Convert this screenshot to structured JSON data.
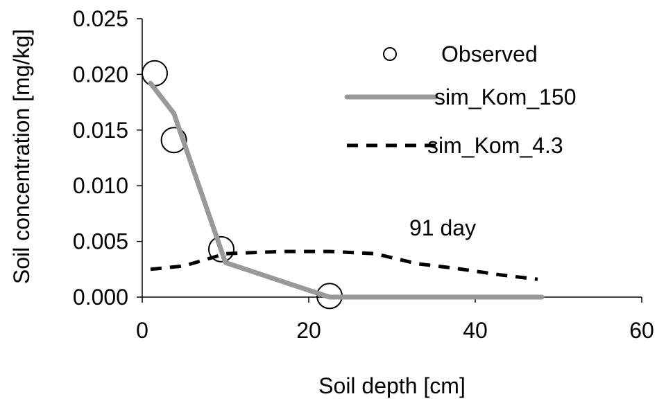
{
  "chart_data": {
    "type": "line",
    "title": "",
    "xlabel": "Soil depth [cm]",
    "ylabel": "Soil concentration [mg/kg]",
    "xlim": [
      0,
      60
    ],
    "ylim": [
      0,
      0.025
    ],
    "x_ticks": [
      "0",
      "20",
      "40",
      "60"
    ],
    "y_ticks": [
      "0.000",
      "0.005",
      "0.010",
      "0.015",
      "0.020",
      "0.025"
    ],
    "grid": false,
    "legend_position": "top-right",
    "annotation": "91 day",
    "series": [
      {
        "name": "Observed",
        "style": "markers",
        "marker": "open-circle",
        "color": "#000000",
        "x": [
          1.5,
          3.8,
          9.5,
          22.5
        ],
        "y": [
          0.0201,
          0.0141,
          0.0043,
          0.0001
        ]
      },
      {
        "name": "sim_Kom_150",
        "style": "solid",
        "color": "#999999",
        "x": [
          1.0,
          3.8,
          10.0,
          22.5,
          30.0,
          48.0
        ],
        "y": [
          0.0192,
          0.0165,
          0.0031,
          0.0,
          0.0,
          0.0
        ]
      },
      {
        "name": "sim_Kom_4.3",
        "style": "dashed",
        "color": "#000000",
        "x": [
          1.0,
          5.0,
          10.0,
          17.0,
          22.5,
          28.0,
          33.0,
          37.5,
          43.0,
          47.5
        ],
        "y": [
          0.0025,
          0.0028,
          0.0039,
          0.0041,
          0.0041,
          0.0039,
          0.003,
          0.0026,
          0.002,
          0.0016
        ]
      }
    ]
  }
}
